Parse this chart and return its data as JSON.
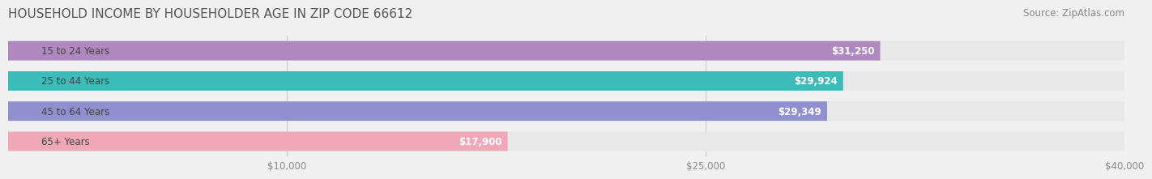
{
  "title": "HOUSEHOLD INCOME BY HOUSEHOLDER AGE IN ZIP CODE 66612",
  "source": "Source: ZipAtlas.com",
  "categories": [
    "15 to 24 Years",
    "25 to 44 Years",
    "45 to 64 Years",
    "65+ Years"
  ],
  "values": [
    31250,
    29924,
    29349,
    17900
  ],
  "bar_colors": [
    "#b088c0",
    "#3bbcb8",
    "#9090d0",
    "#f0a8b8"
  ],
  "value_labels": [
    "$31,250",
    "$29,924",
    "$29,349",
    "$17,900"
  ],
  "xlim": [
    0,
    40000
  ],
  "xticks": [
    10000,
    25000,
    40000
  ],
  "xtick_labels": [
    "$10,000",
    "$25,000",
    "$40,000"
  ],
  "background_color": "#f0f0f0",
  "bar_bg_color": "#e8e8e8",
  "title_fontsize": 11,
  "source_fontsize": 8.5,
  "label_fontsize": 8.5,
  "value_fontsize": 8.5,
  "tick_fontsize": 8.5
}
